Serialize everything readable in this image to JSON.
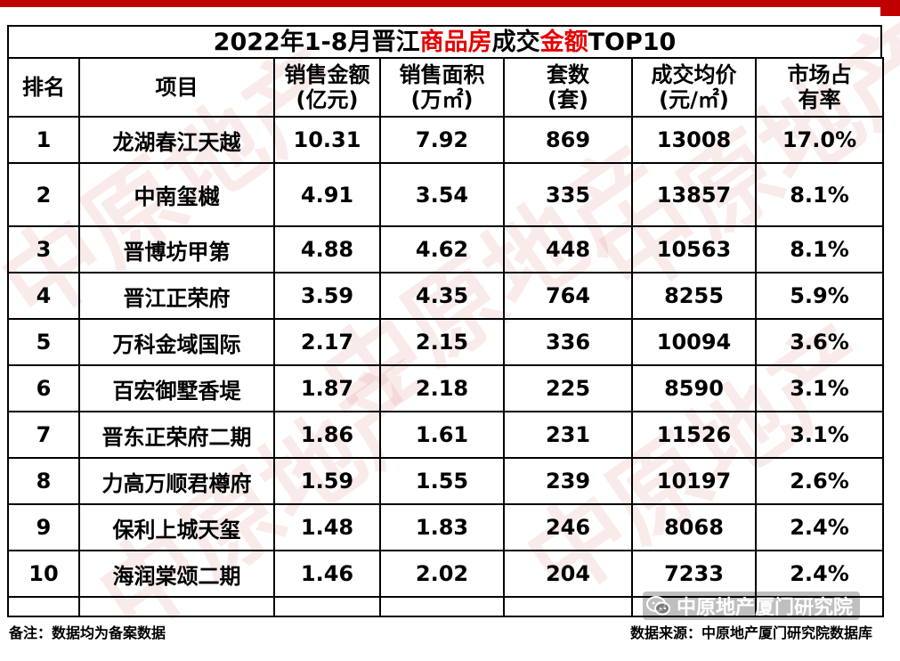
{
  "title": {
    "part1": "2022年1-8月晋江",
    "part2": "商品房",
    "part3": "成交",
    "part4": "金额",
    "part5": "TOP10"
  },
  "headers": {
    "rank": "排名",
    "project": "项目",
    "amount_l1": "销售金额",
    "amount_l2": "(亿元)",
    "area_l1": "销售面积",
    "area_l2": "(万㎡)",
    "units_l1": "套数",
    "units_l2": "(套)",
    "price_l1": "成交均价",
    "price_l2": "(元/㎡)",
    "share_l1": "市场占",
    "share_l2": "有率"
  },
  "rows": [
    {
      "rank": "1",
      "project": "龙湖春江天越",
      "amount": "10.31",
      "area": "7.92",
      "units": "869",
      "price": "13008",
      "share": "17.0%"
    },
    {
      "rank": "2",
      "project": "中南玺樾",
      "amount": "4.91",
      "area": "3.54",
      "units": "335",
      "price": "13857",
      "share": "8.1%"
    },
    {
      "rank": "3",
      "project": "晋博坊甲第",
      "amount": "4.88",
      "area": "4.62",
      "units": "448",
      "price": "10563",
      "share": "8.1%"
    },
    {
      "rank": "4",
      "project": "晋江正荣府",
      "amount": "3.59",
      "area": "4.35",
      "units": "764",
      "price": "8255",
      "share": "5.9%"
    },
    {
      "rank": "5",
      "project": "万科金域国际",
      "amount": "2.17",
      "area": "2.15",
      "units": "336",
      "price": "10094",
      "share": "3.6%"
    },
    {
      "rank": "6",
      "project": "百宏御墅香堤",
      "amount": "1.87",
      "area": "2.18",
      "units": "225",
      "price": "8590",
      "share": "3.1%"
    },
    {
      "rank": "7",
      "project": "晋东正荣府二期",
      "amount": "1.86",
      "area": "1.61",
      "units": "231",
      "price": "11526",
      "share": "3.1%"
    },
    {
      "rank": "8",
      "project": "力高万顺君樽府",
      "amount": "1.59",
      "area": "1.55",
      "units": "239",
      "price": "10197",
      "share": "2.6%"
    },
    {
      "rank": "9",
      "project": "保利上城天玺",
      "amount": "1.48",
      "area": "1.83",
      "units": "246",
      "price": "8068",
      "share": "2.4%"
    },
    {
      "rank": "10",
      "project": "海润棠颂二期",
      "amount": "1.46",
      "area": "2.02",
      "units": "204",
      "price": "7233",
      "share": "2.4%"
    }
  ],
  "footer": {
    "note": "备注：数据均为备案数据",
    "source": "数据来源：中原地产厦门研究院数据库",
    "wechat_account": "中原地产厦门研究院"
  },
  "watermark_text": "中原地产",
  "colors": {
    "accent": "#e60000",
    "brand_red": "#c00000"
  }
}
